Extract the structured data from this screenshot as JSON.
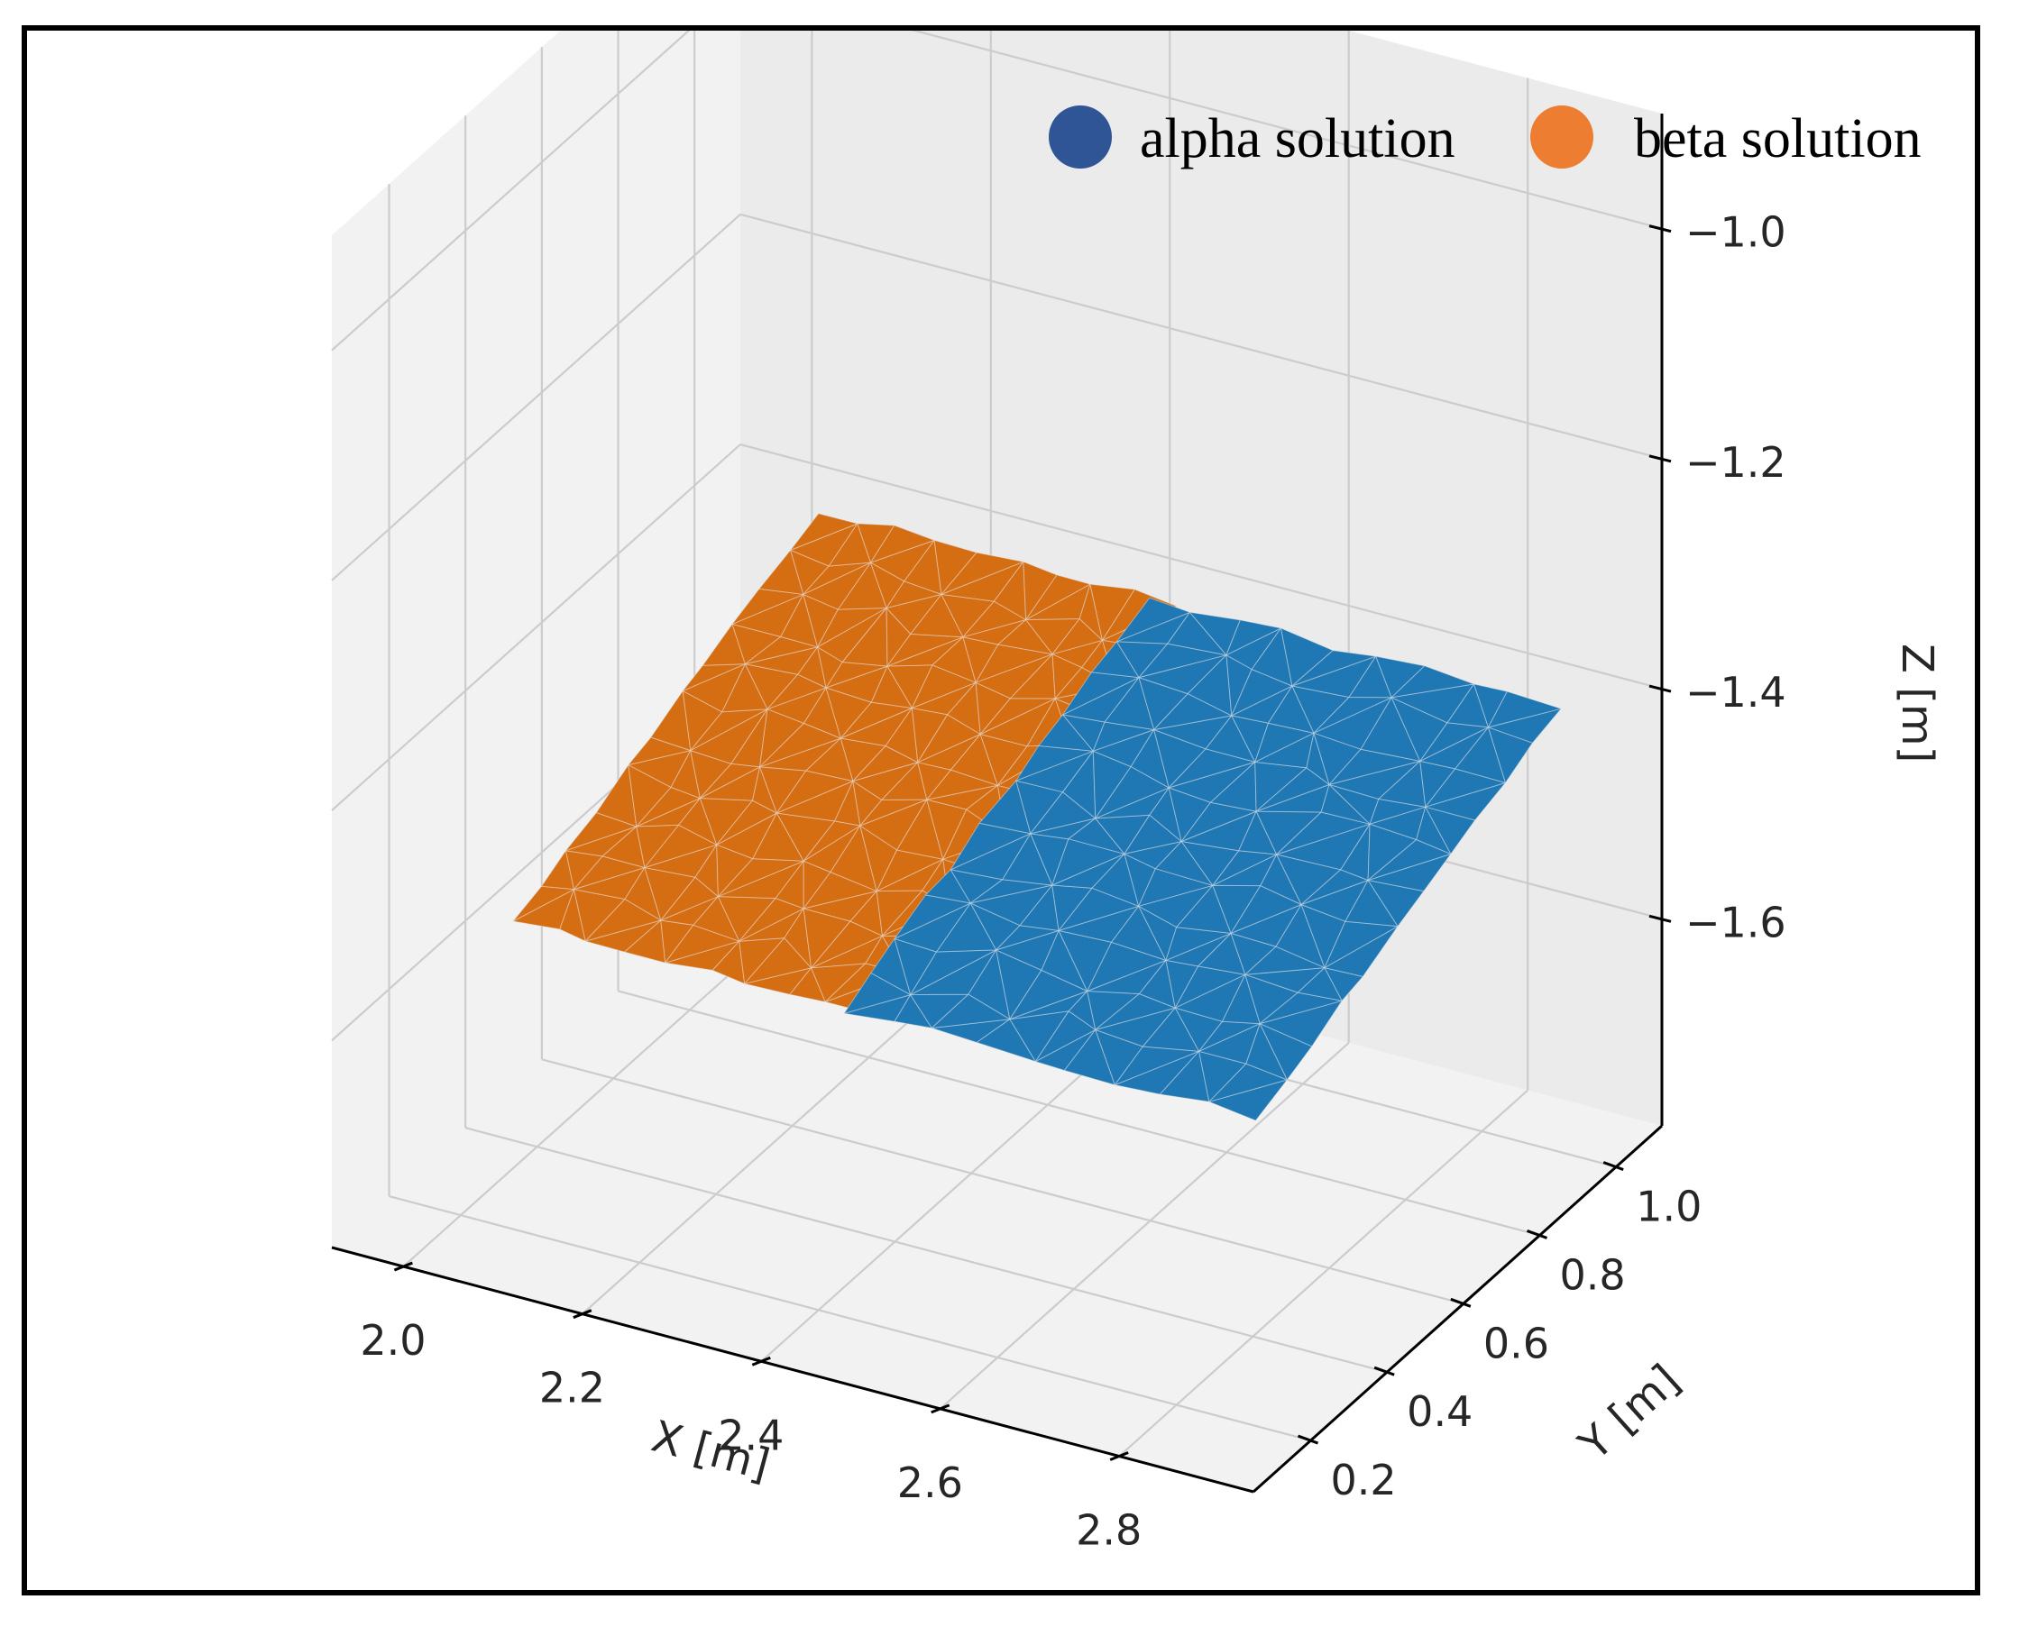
{
  "chart_data": {
    "type": "surface3d",
    "title": "",
    "xlabel": "X [m]",
    "ylabel": "Y [m]",
    "zlabel": "Z [m]",
    "xlim": [
      1.92,
      2.95
    ],
    "ylim": [
      0.05,
      1.12
    ],
    "zlim": [
      -1.78,
      -0.9
    ],
    "xticks": [
      "2.0",
      "2.2",
      "2.4",
      "2.6",
      "2.8"
    ],
    "yticks": [
      "0.2",
      "0.4",
      "0.6",
      "0.8",
      "1.0"
    ],
    "zticks": [
      "−1.0",
      "−1.2",
      "−1.4",
      "−1.6"
    ],
    "legend": {
      "placement": "top-right",
      "entries": [
        {
          "name": "alpha solution",
          "color": "#2f5597"
        },
        {
          "name": "beta solution",
          "color": "#ed7d31"
        }
      ]
    },
    "series": [
      {
        "name": "beta solution",
        "color": "#d56d12",
        "x_range": [
          2.05,
          2.45
        ],
        "y_range": [
          0.22,
          1.02
        ],
        "z_at_y_min": -1.52,
        "z_at_y_max": -1.4
      },
      {
        "name": "alpha solution",
        "color": "#1f77b4",
        "x_range": [
          2.42,
          2.88
        ],
        "y_range": [
          0.22,
          1.02
        ],
        "z_at_y_min": -1.52,
        "z_at_y_max": -1.4
      }
    ]
  }
}
